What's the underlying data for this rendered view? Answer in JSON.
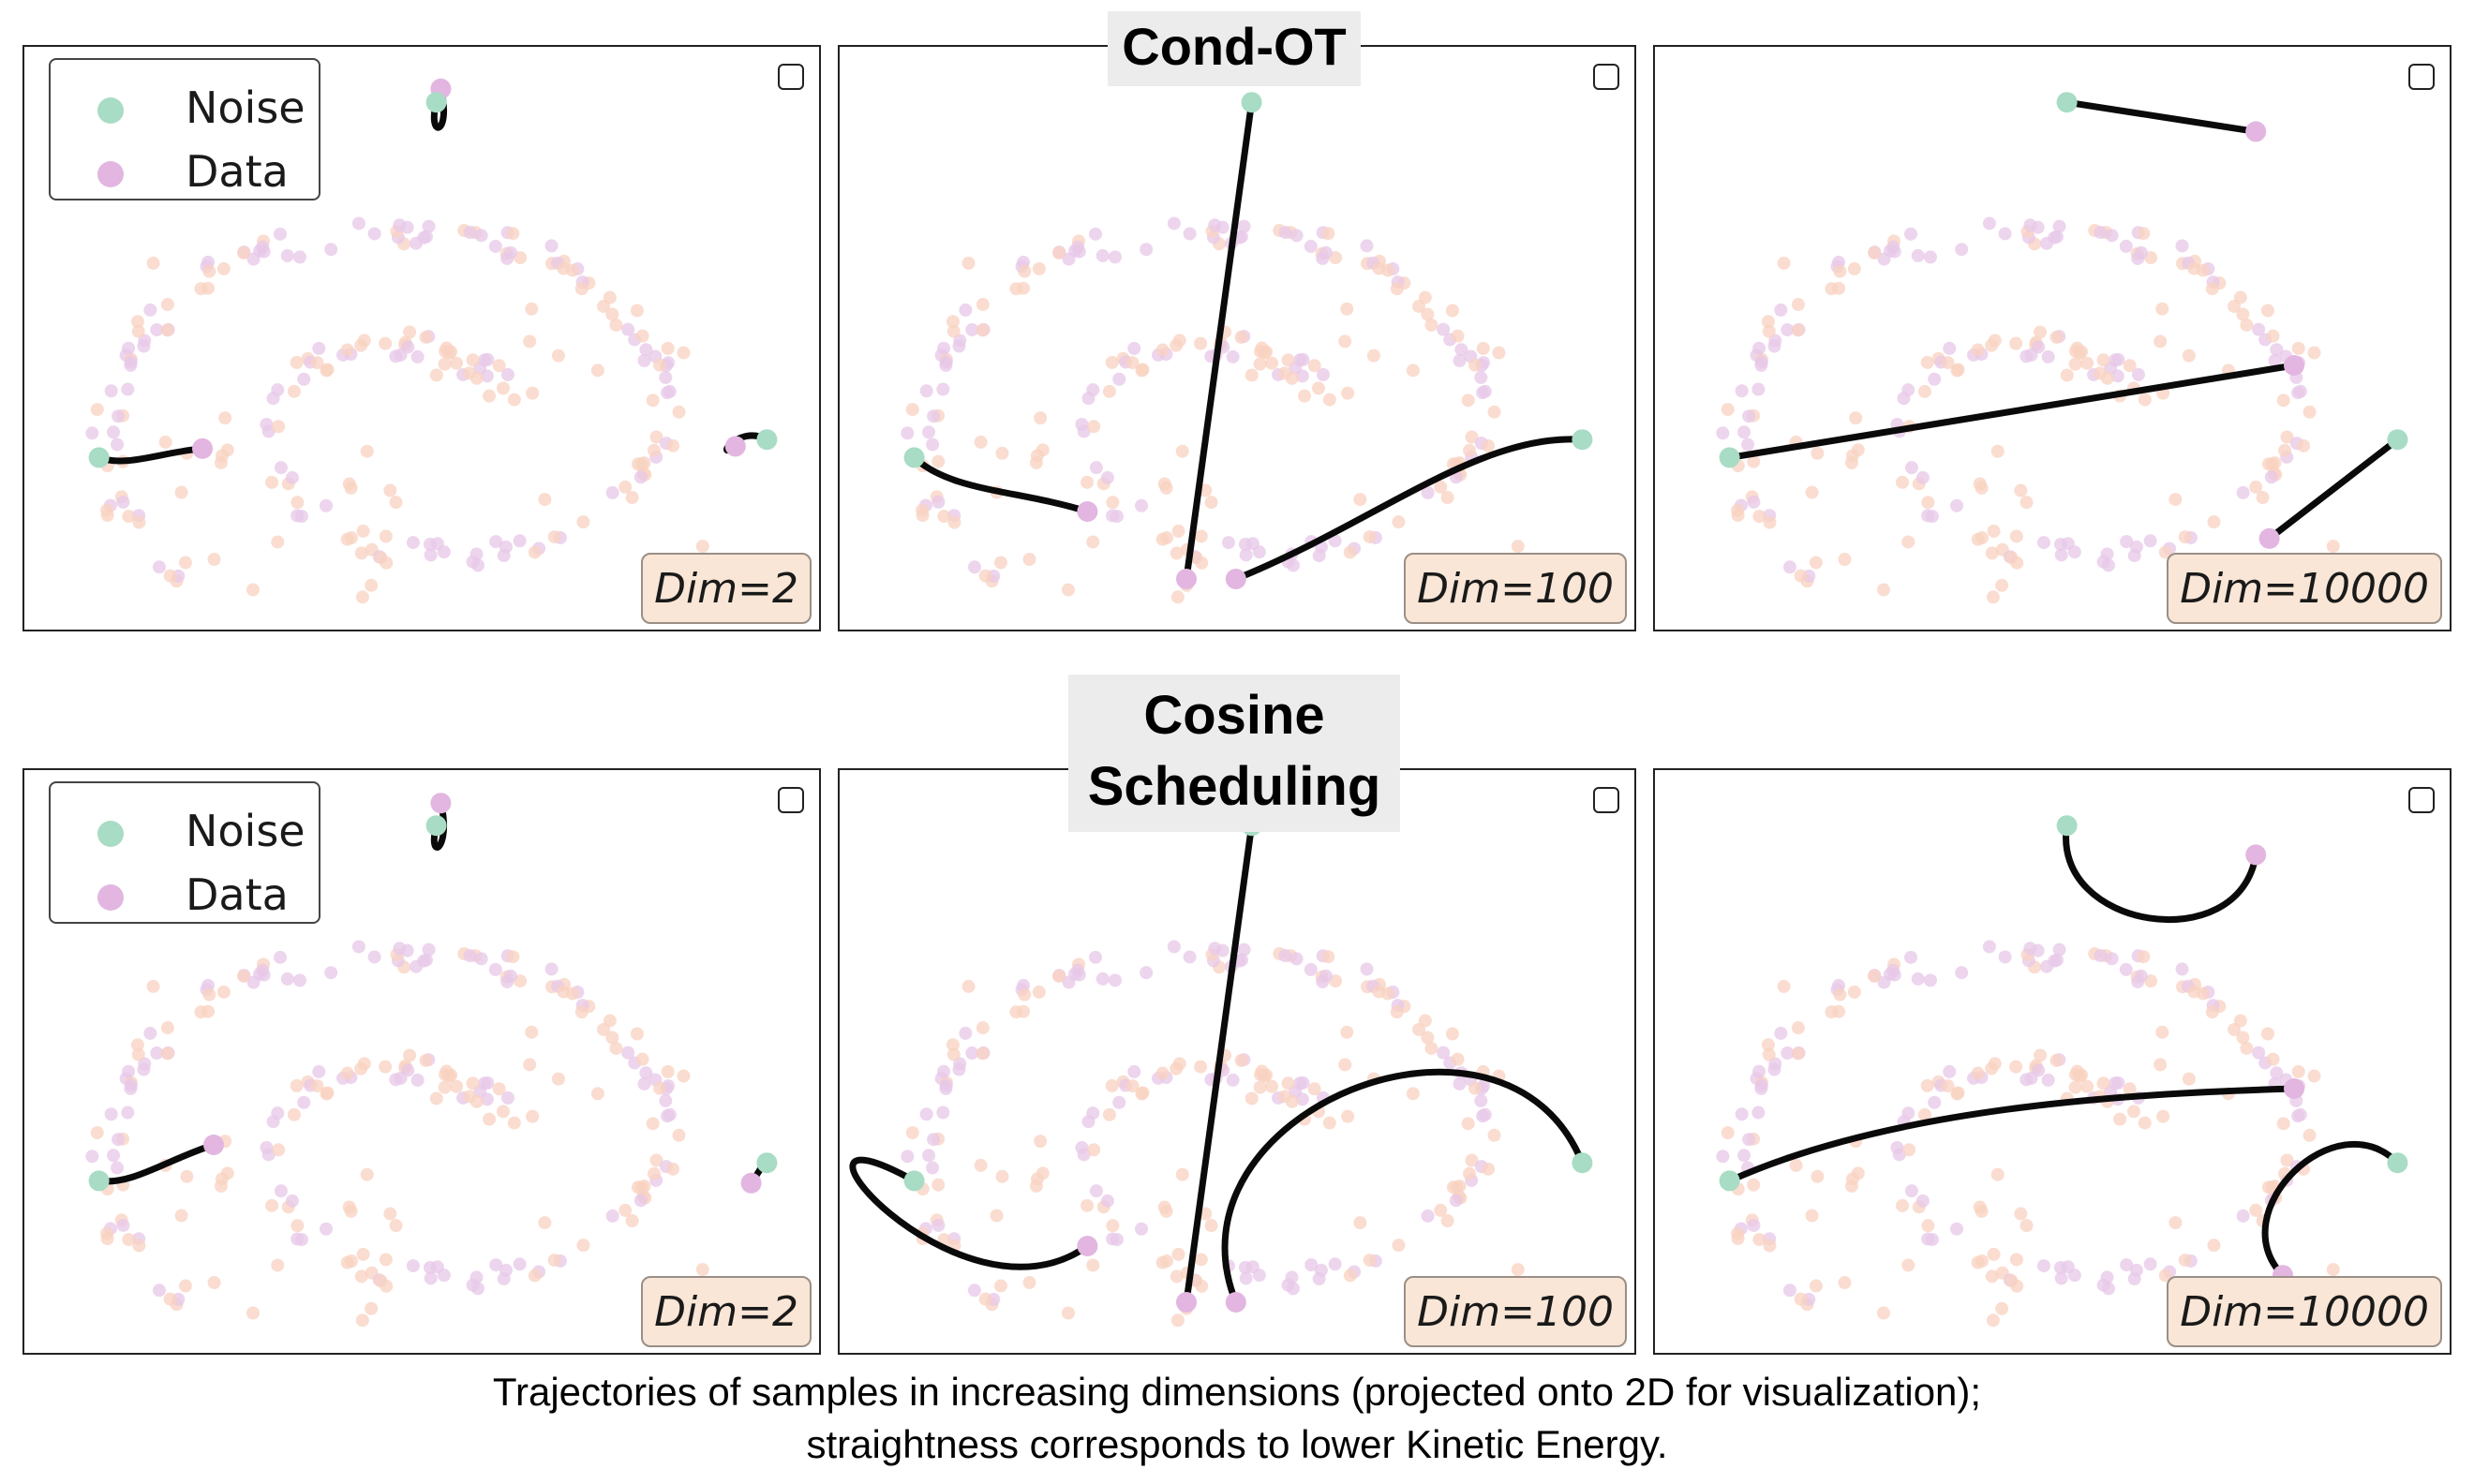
{
  "titles": {
    "row1": "Cond-OT",
    "row2_line1": "Cosine",
    "row2_line2": "Scheduling"
  },
  "legend": {
    "noise_label": "Noise",
    "data_label": "Data"
  },
  "colors": {
    "noise": "#a8dcc4",
    "data": "#e2b6e0",
    "scatter_orange": "#f8d2c0",
    "scatter_pink": "#e7c7e8",
    "trajectory": "#0a0a0a",
    "dim_box_fill": "#f9e6d6"
  },
  "caption": {
    "line1": "Trajectories of samples in increasing dimensions (projected onto 2D for visualization);",
    "line2": "straightness corresponds to lower Kinetic Energy."
  },
  "chart_data": [
    {
      "type": "scatter",
      "row": "Cond-OT",
      "dim_label": "Dim=2",
      "trajectories": [
        {
          "noise": [
            -1.46,
            -0.16
          ],
          "data": [
            -1.0,
            -0.12
          ],
          "shape": "hook"
        },
        {
          "noise": [
            0.04,
            1.42
          ],
          "data": [
            0.06,
            1.48
          ],
          "shape": "curl"
        },
        {
          "noise": [
            1.51,
            -0.08
          ],
          "data": [
            1.37,
            -0.11
          ],
          "shape": "loop"
        }
      ]
    },
    {
      "type": "scatter",
      "row": "Cond-OT",
      "dim_label": "Dim=100",
      "trajectories": [
        {
          "noise": [
            -1.46,
            -0.16
          ],
          "data": [
            -0.69,
            -0.4
          ],
          "shape": "bend"
        },
        {
          "noise": [
            0.04,
            1.42
          ],
          "data": [
            -0.25,
            -0.7
          ],
          "shape": "straight"
        },
        {
          "noise": [
            1.51,
            -0.08
          ],
          "data": [
            -0.03,
            -0.7
          ],
          "shape": "bend"
        }
      ]
    },
    {
      "type": "scatter",
      "row": "Cond-OT",
      "dim_label": "Dim=10000",
      "trajectories": [
        {
          "noise": [
            -1.46,
            -0.16
          ],
          "data": [
            1.05,
            0.25
          ],
          "shape": "straight"
        },
        {
          "noise": [
            0.04,
            1.42
          ],
          "data": [
            0.88,
            1.29
          ],
          "shape": "straight"
        },
        {
          "noise": [
            1.51,
            -0.08
          ],
          "data": [
            0.94,
            -0.52
          ],
          "shape": "straight"
        }
      ]
    },
    {
      "type": "scatter",
      "row": "Cosine Scheduling",
      "dim_label": "Dim=2",
      "trajectories": [
        {
          "noise": [
            -1.46,
            -0.16
          ],
          "data": [
            -0.95,
            0.0
          ],
          "shape": "hook"
        },
        {
          "noise": [
            0.04,
            1.42
          ],
          "data": [
            0.06,
            1.52
          ],
          "shape": "curl"
        },
        {
          "noise": [
            1.51,
            -0.08
          ],
          "data": [
            1.44,
            -0.17
          ],
          "shape": "hook"
        }
      ]
    },
    {
      "type": "scatter",
      "row": "Cosine Scheduling",
      "dim_label": "Dim=100",
      "trajectories": [
        {
          "noise": [
            -1.46,
            -0.16
          ],
          "data": [
            -0.69,
            -0.45
          ],
          "shape": "loop"
        },
        {
          "noise": [
            0.04,
            1.42
          ],
          "data": [
            -0.25,
            -0.7
          ],
          "shape": "straight"
        },
        {
          "noise": [
            1.51,
            -0.08
          ],
          "data": [
            -0.03,
            -0.7
          ],
          "shape": "arc"
        }
      ]
    },
    {
      "type": "scatter",
      "row": "Cosine Scheduling",
      "dim_label": "Dim=10000",
      "trajectories": [
        {
          "noise": [
            -1.46,
            -0.16
          ],
          "data": [
            1.05,
            0.25
          ],
          "shape": "sag"
        },
        {
          "noise": [
            0.04,
            1.42
          ],
          "data": [
            0.88,
            1.29
          ],
          "shape": "arc"
        },
        {
          "noise": [
            1.51,
            -0.08
          ],
          "data": [
            1.0,
            -0.58
          ],
          "shape": "arc"
        }
      ]
    }
  ]
}
